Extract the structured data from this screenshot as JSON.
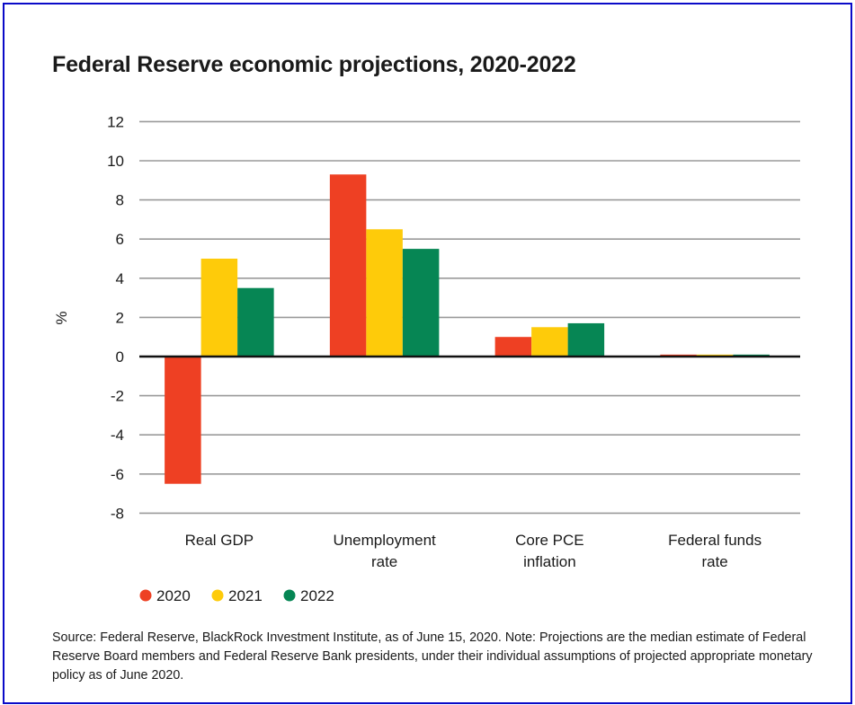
{
  "frame_color": "#0a0ac8",
  "title": "Federal Reserve economic projections, 2020-2022",
  "chart_data": {
    "type": "bar",
    "title": "Federal Reserve economic projections, 2020-2022",
    "xlabel": "",
    "ylabel": "%",
    "ylim": [
      -8,
      12
    ],
    "yticks": [
      12,
      10,
      8,
      6,
      4,
      2,
      0,
      -2,
      -4,
      -6,
      -8
    ],
    "grid": true,
    "legend_position": "bottom-left",
    "categories": [
      [
        "Real GDP"
      ],
      [
        "Unemployment",
        "rate"
      ],
      [
        "Core PCE",
        "inflation"
      ],
      [
        "Federal funds",
        "rate"
      ]
    ],
    "series": [
      {
        "name": "2020",
        "color": "#ee4023",
        "values": [
          -6.5,
          9.3,
          1.0,
          0.1
        ]
      },
      {
        "name": "2021",
        "color": "#fecb0a",
        "values": [
          5.0,
          6.5,
          1.5,
          0.1
        ]
      },
      {
        "name": "2022",
        "color": "#068654",
        "values": [
          3.5,
          5.5,
          1.7,
          0.1
        ]
      }
    ]
  },
  "note": "Source: Federal Reserve, BlackRock Investment Institute, as of June 15, 2020. Note: Projections are the median estimate of Federal Reserve Board members and Federal Reserve Bank presidents, under their individual assumptions of projected appropriate monetary policy as of June 2020."
}
